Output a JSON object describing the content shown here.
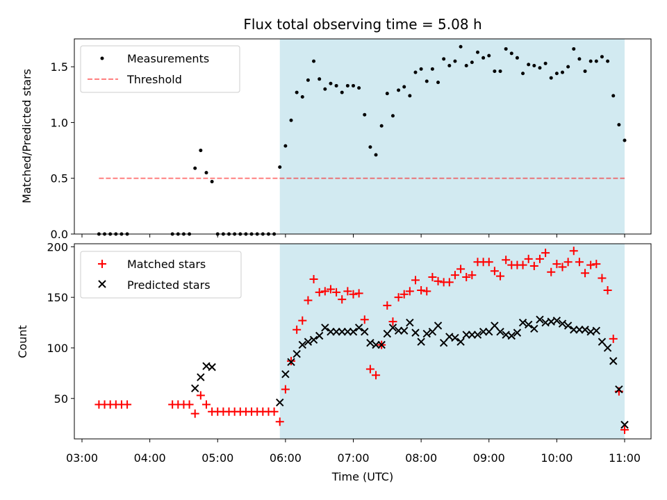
{
  "title": "Flux total observing time = 5.08 h",
  "xlabel": "Time (UTC)",
  "xticks": [
    "03:00",
    "04:00",
    "05:00",
    "06:00",
    "07:00",
    "08:00",
    "09:00",
    "10:00",
    "11:00"
  ],
  "colors": {
    "shade": "#add8e6",
    "threshold": "#ff0000",
    "matched": "#ff0000",
    "predicted": "#000000",
    "measurements": "#000000"
  },
  "chart_data": [
    {
      "type": "scatter",
      "ylabel": "Matched/Predicted stars",
      "xlim": [
        "03:00",
        "11:00"
      ],
      "ylim": [
        0,
        1.75
      ],
      "yticks": [
        "0.0",
        "0.5",
        "1.0",
        "1.5"
      ],
      "shaded_interval": [
        "05:55",
        "11:00"
      ],
      "legend_position": "upper left",
      "legend": [
        "Measurements",
        "Threshold"
      ],
      "threshold": {
        "name": "Threshold",
        "y": 0.5,
        "x": [
          "03:15",
          "11:00"
        ]
      },
      "series": [
        {
          "name": "Measurements",
          "x": [
            "03:15",
            "03:20",
            "03:25",
            "03:30",
            "03:35",
            "03:40",
            "04:20",
            "04:25",
            "04:30",
            "04:35",
            "04:40",
            "04:45",
            "04:50",
            "04:55",
            "05:00",
            "05:05",
            "05:10",
            "05:15",
            "05:20",
            "05:25",
            "05:30",
            "05:35",
            "05:40",
            "05:45",
            "05:50",
            "05:55",
            "06:00",
            "06:05",
            "06:10",
            "06:15",
            "06:20",
            "06:25",
            "06:30",
            "06:35",
            "06:40",
            "06:45",
            "06:50",
            "06:55",
            "07:00",
            "07:05",
            "07:10",
            "07:15",
            "07:20",
            "07:25",
            "07:30",
            "07:35",
            "07:40",
            "07:45",
            "07:50",
            "07:55",
            "08:00",
            "08:05",
            "08:10",
            "08:15",
            "08:20",
            "08:25",
            "08:30",
            "08:35",
            "08:40",
            "08:45",
            "08:50",
            "08:55",
            "09:00",
            "09:05",
            "09:10",
            "09:15",
            "09:20",
            "09:25",
            "09:30",
            "09:35",
            "09:40",
            "09:45",
            "09:50",
            "09:55",
            "10:00",
            "10:05",
            "10:10",
            "10:15",
            "10:20",
            "10:25",
            "10:30",
            "10:35",
            "10:40",
            "10:45",
            "10:50",
            "10:55",
            "11:00"
          ],
          "y": [
            0,
            0,
            0,
            0,
            0,
            0,
            0,
            0,
            0,
            0,
            0.59,
            0.75,
            0.55,
            0.47,
            0,
            0,
            0,
            0,
            0,
            0,
            0,
            0,
            0,
            0,
            0,
            0.6,
            0.79,
            1.02,
            1.27,
            1.23,
            1.38,
            1.55,
            1.39,
            1.3,
            1.35,
            1.33,
            1.27,
            1.33,
            1.33,
            1.31,
            1.07,
            0.78,
            0.71,
            0.97,
            1.26,
            1.06,
            1.29,
            1.32,
            1.24,
            1.45,
            1.48,
            1.37,
            1.48,
            1.36,
            1.57,
            1.51,
            1.55,
            1.68,
            1.51,
            1.54,
            1.63,
            1.58,
            1.6,
            1.46,
            1.46,
            1.66,
            1.62,
            1.58,
            1.44,
            1.52,
            1.51,
            1.49,
            1.53,
            1.4,
            1.44,
            1.45,
            1.5,
            1.66,
            1.57,
            1.46,
            1.55,
            1.55,
            1.59,
            1.55,
            1.24,
            0.98,
            0.84
          ]
        }
      ]
    },
    {
      "type": "scatter",
      "ylabel": "Count",
      "xlim": [
        "03:00",
        "11:00"
      ],
      "ylim": [
        10,
        203
      ],
      "yticks": [
        "50",
        "100",
        "150",
        "200"
      ],
      "shaded_interval": [
        "05:55",
        "11:00"
      ],
      "legend_position": "upper left",
      "legend": [
        "Matched stars",
        "Predicted stars"
      ],
      "series": [
        {
          "name": "Matched stars",
          "marker": "+",
          "x": [
            "03:15",
            "03:20",
            "03:25",
            "03:30",
            "03:35",
            "03:40",
            "04:20",
            "04:25",
            "04:30",
            "04:35",
            "04:40",
            "04:45",
            "04:50",
            "04:55",
            "05:00",
            "05:05",
            "05:10",
            "05:15",
            "05:20",
            "05:25",
            "05:30",
            "05:35",
            "05:40",
            "05:45",
            "05:50",
            "05:55",
            "06:00",
            "06:05",
            "06:10",
            "06:15",
            "06:20",
            "06:25",
            "06:30",
            "06:35",
            "06:40",
            "06:45",
            "06:50",
            "06:55",
            "07:00",
            "07:05",
            "07:10",
            "07:15",
            "07:20",
            "07:25",
            "07:30",
            "07:35",
            "07:40",
            "07:45",
            "07:50",
            "07:55",
            "08:00",
            "08:05",
            "08:10",
            "08:15",
            "08:20",
            "08:25",
            "08:30",
            "08:35",
            "08:40",
            "08:45",
            "08:50",
            "08:55",
            "09:00",
            "09:05",
            "09:10",
            "09:15",
            "09:20",
            "09:25",
            "09:30",
            "09:35",
            "09:40",
            "09:45",
            "09:50",
            "09:55",
            "10:00",
            "10:05",
            "10:10",
            "10:15",
            "10:20",
            "10:25",
            "10:30",
            "10:35",
            "10:40",
            "10:45",
            "10:50",
            "10:55",
            "11:00"
          ],
          "y": [
            44,
            44,
            44,
            44,
            44,
            44,
            44,
            44,
            44,
            44,
            35,
            53,
            44,
            37,
            37,
            37,
            37,
            37,
            37,
            37,
            37,
            37,
            37,
            37,
            37,
            27,
            59,
            87,
            118,
            127,
            147,
            168,
            155,
            156,
            158,
            155,
            148,
            156,
            153,
            154,
            128,
            79,
            73,
            103,
            142,
            126,
            150,
            153,
            156,
            167,
            157,
            156,
            170,
            166,
            165,
            165,
            172,
            178,
            170,
            172,
            185,
            185,
            185,
            176,
            171,
            187,
            182,
            182,
            182,
            188,
            181,
            188,
            194,
            175,
            183,
            180,
            185,
            196,
            185,
            174,
            182,
            183,
            169,
            157,
            109,
            57,
            19
          ]
        },
        {
          "name": "Predicted stars",
          "marker": "x",
          "x": [
            "04:40",
            "04:45",
            "04:50",
            "04:55",
            "05:55",
            "06:00",
            "06:05",
            "06:10",
            "06:15",
            "06:20",
            "06:25",
            "06:30",
            "06:35",
            "06:40",
            "06:45",
            "06:50",
            "06:55",
            "07:00",
            "07:05",
            "07:10",
            "07:15",
            "07:20",
            "07:25",
            "07:30",
            "07:35",
            "07:40",
            "07:45",
            "07:50",
            "07:55",
            "08:00",
            "08:05",
            "08:10",
            "08:15",
            "08:20",
            "08:25",
            "08:30",
            "08:35",
            "08:40",
            "08:45",
            "08:50",
            "08:55",
            "09:00",
            "09:05",
            "09:10",
            "09:15",
            "09:20",
            "09:25",
            "09:30",
            "09:35",
            "09:40",
            "09:45",
            "09:50",
            "09:55",
            "10:00",
            "10:05",
            "10:10",
            "10:15",
            "10:20",
            "10:25",
            "10:30",
            "10:35",
            "10:40",
            "10:45",
            "10:50",
            "10:55",
            "11:00"
          ],
          "y": [
            60,
            71,
            82,
            81,
            46,
            74,
            86,
            94,
            103,
            106,
            108,
            112,
            120,
            116,
            116,
            116,
            116,
            116,
            120,
            116,
            105,
            103,
            103,
            114,
            120,
            117,
            117,
            125,
            115,
            106,
            114,
            116,
            122,
            105,
            111,
            110,
            106,
            113,
            113,
            113,
            116,
            116,
            122,
            116,
            113,
            112,
            115,
            125,
            123,
            119,
            128,
            125,
            126,
            127,
            124,
            122,
            118,
            118,
            118,
            116,
            117,
            106,
            100,
            87,
            59,
            24
          ]
        }
      ]
    }
  ]
}
